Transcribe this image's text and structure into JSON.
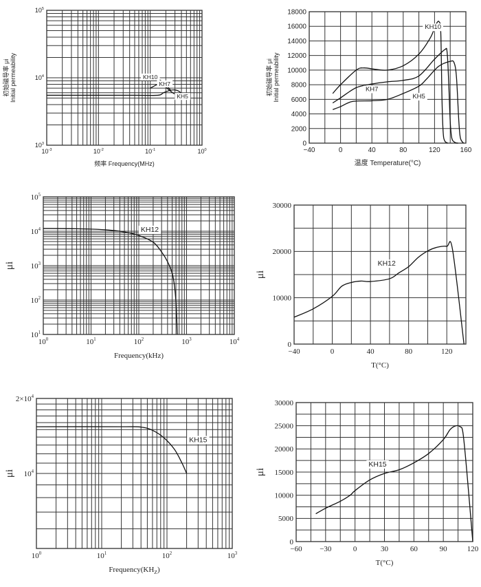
{
  "chart_data": [
    {
      "type": "line",
      "title": "",
      "xlabel": "频率 Frequency(MHz)",
      "ylabel_lines": [
        "初始磁导率 μi",
        "Initial permeability"
      ],
      "xscale": "log",
      "yscale": "log",
      "xlim": [
        0.001,
        1
      ],
      "ylim": [
        1000,
        100000
      ],
      "xticks": [
        {
          "v": 0.001,
          "base": "10",
          "exp": "-3"
        },
        {
          "v": 0.01,
          "base": "10",
          "exp": "-2"
        },
        {
          "v": 0.1,
          "base": "10",
          "exp": "-1"
        },
        {
          "v": 1,
          "base": "10",
          "exp": "0"
        }
      ],
      "yticks": [
        {
          "v": 1000,
          "base": "10",
          "exp": "3"
        },
        {
          "v": 10000,
          "base": "10",
          "exp": "4"
        },
        {
          "v": 100000,
          "base": "10",
          "exp": "5"
        }
      ],
      "grid": true,
      "series": [
        {
          "name": "KH10",
          "points": [
            [
              0.1,
              10000
            ],
            [
              0.13,
              9800
            ],
            [
              0.17,
              8800
            ],
            [
              0.21,
              7500
            ],
            [
              0.25,
              6500
            ]
          ]
        },
        {
          "name": "KH7",
          "points": [
            [
              0.1,
              7000
            ],
            [
              0.13,
              7800
            ],
            [
              0.15,
              8000
            ],
            [
              0.18,
              7700
            ],
            [
              0.22,
              6800
            ],
            [
              0.27,
              6000
            ],
            [
              0.32,
              5600
            ]
          ]
        },
        {
          "name": "KH5",
          "points": [
            [
              0.001,
              5500
            ],
            [
              0.05,
              5500
            ],
            [
              0.14,
              5500
            ],
            [
              0.18,
              6000
            ],
            [
              0.24,
              6500
            ],
            [
              0.3,
              6600
            ],
            [
              0.36,
              6300
            ],
            [
              0.42,
              5600
            ]
          ]
        }
      ],
      "annotations": [
        {
          "text": "KH10",
          "x": 0.1,
          "y": 10500
        },
        {
          "text": "KH7",
          "x": 0.19,
          "y": 8300
        },
        {
          "text": "KH5",
          "x": 0.42,
          "y": 5400
        }
      ]
    },
    {
      "type": "line",
      "title": "",
      "xlabel": "温度 Temperature(°C)",
      "ylabel_lines": [
        "初始磁导率 μi",
        "Initial permeability"
      ],
      "xscale": "linear",
      "yscale": "linear",
      "xlim": [
        -40,
        160
      ],
      "ylim": [
        0,
        18000
      ],
      "xticks": [
        {
          "v": -40,
          "label": "−40"
        },
        {
          "v": 0,
          "label": "0"
        },
        {
          "v": 40,
          "label": "40"
        },
        {
          "v": 80,
          "label": "80"
        },
        {
          "v": 120,
          "label": "120"
        },
        {
          "v": 160,
          "label": "160"
        }
      ],
      "yticks": [
        {
          "v": 0,
          "label": "0"
        },
        {
          "v": 2000,
          "label": "2000"
        },
        {
          "v": 4000,
          "label": "4000"
        },
        {
          "v": 6000,
          "label": "6000"
        },
        {
          "v": 8000,
          "label": "8000"
        },
        {
          "v": 10000,
          "label": "10000"
        },
        {
          "v": 12000,
          "label": "12000"
        },
        {
          "v": 14000,
          "label": "14000"
        },
        {
          "v": 16000,
          "label": "16000"
        },
        {
          "v": 18000,
          "label": "18000"
        }
      ],
      "grid": true,
      "series": [
        {
          "name": "KH10",
          "points": [
            [
              -10,
              6800
            ],
            [
              0,
              8000
            ],
            [
              20,
              10000
            ],
            [
              30,
              10300
            ],
            [
              45,
              10100
            ],
            [
              60,
              10000
            ],
            [
              80,
              10600
            ],
            [
              100,
              12200
            ],
            [
              115,
              14500
            ],
            [
              122,
              16300
            ],
            [
              126,
              16600
            ],
            [
              128,
              15000
            ],
            [
              129.5,
              6000
            ],
            [
              131,
              1500
            ],
            [
              133,
              300
            ],
            [
              137,
              0
            ]
          ]
        },
        {
          "name": "KH7",
          "points": [
            [
              -10,
              5500
            ],
            [
              0,
              6200
            ],
            [
              20,
              7600
            ],
            [
              40,
              8100
            ],
            [
              60,
              8400
            ],
            [
              80,
              8600
            ],
            [
              100,
              9200
            ],
            [
              120,
              11500
            ],
            [
              133,
              12800
            ],
            [
              136,
              12500
            ],
            [
              138,
              8500
            ],
            [
              140,
              3000
            ],
            [
              142,
              700
            ],
            [
              146,
              100
            ],
            [
              150,
              0
            ]
          ]
        },
        {
          "name": "KH5",
          "points": [
            [
              -10,
              4600
            ],
            [
              0,
              5000
            ],
            [
              15,
              5700
            ],
            [
              40,
              5800
            ],
            [
              60,
              6000
            ],
            [
              80,
              6800
            ],
            [
              100,
              7800
            ],
            [
              110,
              8800
            ],
            [
              125,
              10500
            ],
            [
              140,
              11200
            ],
            [
              145,
              11000
            ],
            [
              148,
              9000
            ],
            [
              151,
              3000
            ],
            [
              153,
              700
            ],
            [
              157,
              0
            ]
          ]
        }
      ],
      "annotations": [
        {
          "text": "KH10",
          "x": 118,
          "y": 16000
        },
        {
          "text": "KH7",
          "x": 40,
          "y": 7500
        },
        {
          "text": "KH5",
          "x": 100,
          "y": 6500
        }
      ]
    },
    {
      "type": "line",
      "title": "",
      "xlabel": "Frequency(kHz)",
      "ylabel_lines": [
        "μi"
      ],
      "xscale": "log",
      "yscale": "log",
      "xlim": [
        1,
        10000
      ],
      "ylim": [
        10,
        100000
      ],
      "xticks": [
        {
          "v": 1,
          "base": "10",
          "exp": "0"
        },
        {
          "v": 10,
          "base": "10",
          "exp": "1"
        },
        {
          "v": 100,
          "base": "10",
          "exp": "2"
        },
        {
          "v": 1000,
          "base": "10",
          "exp": "3"
        },
        {
          "v": 10000,
          "base": "10",
          "exp": "4"
        }
      ],
      "yticks": [
        {
          "v": 10,
          "base": "10",
          "exp": "1"
        },
        {
          "v": 100,
          "base": "10",
          "exp": "2"
        },
        {
          "v": 1000,
          "base": "10",
          "exp": "3"
        },
        {
          "v": 10000,
          "base": "10",
          "exp": "4"
        },
        {
          "v": 100000,
          "base": "10",
          "exp": "5"
        }
      ],
      "grid": true,
      "series": [
        {
          "name": "KH12",
          "points": [
            [
              1,
              12000
            ],
            [
              5,
              11800
            ],
            [
              20,
              11000
            ],
            [
              50,
              9500
            ],
            [
              100,
              7500
            ],
            [
              200,
              4800
            ],
            [
              300,
              2500
            ],
            [
              400,
              1300
            ],
            [
              500,
              600
            ],
            [
              560,
              250
            ],
            [
              610,
              60
            ],
            [
              640,
              10
            ]
          ]
        }
      ],
      "annotations": [
        {
          "text": "KH12",
          "x": 170,
          "y": 11500
        }
      ]
    },
    {
      "type": "line",
      "title": "",
      "xlabel": "T(°C)",
      "ylabel_lines": [
        "μi"
      ],
      "xscale": "linear",
      "yscale": "linear",
      "xlim": [
        -40,
        140
      ],
      "ylim": [
        0,
        30000
      ],
      "xticks": [
        {
          "v": -40,
          "label": "−40"
        },
        {
          "v": 0,
          "label": "0"
        },
        {
          "v": 40,
          "label": "40"
        },
        {
          "v": 80,
          "label": "80"
        },
        {
          "v": 120,
          "label": "120"
        }
      ],
      "yticks": [
        {
          "v": 0,
          "label": "0"
        },
        {
          "v": 10000,
          "label": "10000"
        },
        {
          "v": 20000,
          "label": "20000"
        },
        {
          "v": 30000,
          "label": "30000"
        }
      ],
      "grid": true,
      "series": [
        {
          "name": "KH12",
          "points": [
            [
              -40,
              5800
            ],
            [
              -20,
              7600
            ],
            [
              0,
              10300
            ],
            [
              10,
              12500
            ],
            [
              20,
              13300
            ],
            [
              30,
              13600
            ],
            [
              40,
              13500
            ],
            [
              60,
              14100
            ],
            [
              70,
              15400
            ],
            [
              80,
              16700
            ],
            [
              90,
              18700
            ],
            [
              100,
              20100
            ],
            [
              110,
              20900
            ],
            [
              120,
              21100
            ],
            [
              126,
              20400
            ],
            [
              138,
              0
            ]
          ]
        }
      ],
      "annotations": [
        {
          "text": "KH12",
          "x": 57,
          "y": 17500
        }
      ]
    },
    {
      "type": "line",
      "title": "",
      "xlabel": "Frequency(KH",
      "xlabel_sub": "Z",
      "xlabel_tail": ")",
      "ylabel_lines": [
        "μi"
      ],
      "xscale": "log",
      "yscale": "log",
      "xlim": [
        1,
        1000
      ],
      "ylim": [
        5000,
        20000
      ],
      "xticks": [
        {
          "v": 1,
          "base": "10",
          "exp": "0"
        },
        {
          "v": 10,
          "base": "10",
          "exp": "1"
        },
        {
          "v": 100,
          "base": "10",
          "exp": "2"
        },
        {
          "v": 1000,
          "base": "10",
          "exp": "3"
        }
      ],
      "yticks": [
        {
          "v": 10000,
          "base": "10",
          "exp": "4"
        },
        {
          "v": 20000,
          "base": "2×10",
          "exp": "4"
        }
      ],
      "grid": true,
      "series": [
        {
          "name": "KH15",
          "points": [
            [
              1,
              15400
            ],
            [
              20,
              15400
            ],
            [
              40,
              15350
            ],
            [
              60,
              14900
            ],
            [
              90,
              13900
            ],
            [
              130,
              12500
            ],
            [
              170,
              11000
            ],
            [
              200,
              10000
            ]
          ]
        }
      ],
      "annotations": [
        {
          "text": "KH15",
          "x": 300,
          "y": 13700
        }
      ]
    },
    {
      "type": "line",
      "title": "",
      "xlabel": "T(°C)",
      "ylabel_lines": [
        "μi"
      ],
      "xscale": "linear",
      "yscale": "linear",
      "xlim": [
        -60,
        120
      ],
      "ylim": [
        0,
        30000
      ],
      "xticks": [
        {
          "v": -60,
          "label": "−60"
        },
        {
          "v": -30,
          "label": "−30"
        },
        {
          "v": 0,
          "label": "0"
        },
        {
          "v": 30,
          "label": "30"
        },
        {
          "v": 60,
          "label": "60"
        },
        {
          "v": 90,
          "label": "90"
        },
        {
          "v": 120,
          "label": "120"
        }
      ],
      "yticks": [
        {
          "v": 0,
          "label": "0"
        },
        {
          "v": 5000,
          "label": "5000"
        },
        {
          "v": 10000,
          "label": "10000"
        },
        {
          "v": 15000,
          "label": "15000"
        },
        {
          "v": 20000,
          "label": "20000"
        },
        {
          "v": 25000,
          "label": "25000"
        },
        {
          "v": 30000,
          "label": "30000"
        }
      ],
      "grid": true,
      "series": [
        {
          "name": "KH15",
          "points": [
            [
              -40,
              6000
            ],
            [
              -30,
              7200
            ],
            [
              -15,
              8700
            ],
            [
              -5,
              10000
            ],
            [
              0,
              11000
            ],
            [
              15,
              13300
            ],
            [
              30,
              14700
            ],
            [
              45,
              15500
            ],
            [
              60,
              17000
            ],
            [
              75,
              19000
            ],
            [
              90,
              22000
            ],
            [
              97,
              24200
            ],
            [
              103,
              25000
            ],
            [
              107,
              24800
            ],
            [
              110,
              23500
            ],
            [
              114,
              15000
            ],
            [
              120,
              0
            ]
          ]
        }
      ],
      "annotations": [
        {
          "text": "KH15",
          "x": 23,
          "y": 16800
        }
      ]
    }
  ]
}
